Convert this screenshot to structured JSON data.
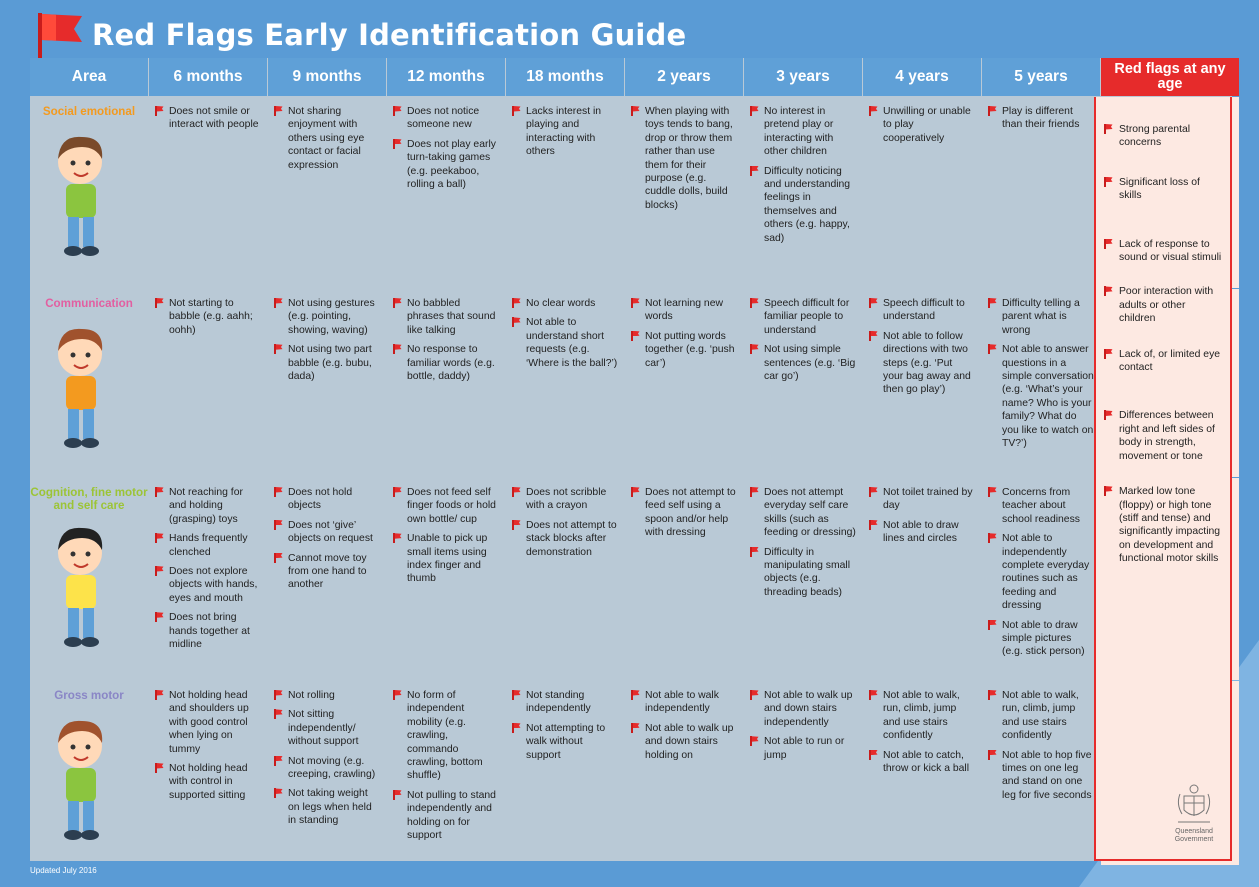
{
  "title": "Red Flags Early Identification Guide",
  "footer": "Updated July 2016",
  "colors": {
    "background": "#5a9bd5",
    "header": "#5fa0d7",
    "red": "#e62b2b",
    "social": "#f39a1f",
    "communication": "#e25fa1",
    "cognition": "#9cc436",
    "gross_motor": "#8a86c6"
  },
  "columns": [
    "Area",
    "6 months",
    "9 months",
    "12 months",
    "18 months",
    "2 years",
    "3 years",
    "4 years",
    "5 years"
  ],
  "red_header": "Red flags at any age",
  "rows": [
    {
      "area": "Social emotional",
      "cells": [
        [
          "Does not smile or interact with people"
        ],
        [
          "Not sharing enjoyment with others using eye contact or facial expression"
        ],
        [
          "Does not notice someone new",
          "Does not play early turn-taking games (e.g. peekaboo, rolling a ball)"
        ],
        [
          "Lacks interest in playing and interacting with others"
        ],
        [
          "When playing with toys tends to bang, drop or throw them rather than use them for their purpose (e.g. cuddle dolls, build blocks)"
        ],
        [
          "No interest in pretend play or interacting with other children",
          "Difficulty noticing and understanding feelings in themselves and others (e.g. happy, sad)"
        ],
        [
          "Unwilling or unable to play cooperatively"
        ],
        [
          "Play is different than their friends"
        ]
      ]
    },
    {
      "area": "Communication",
      "cells": [
        [
          "Not starting to babble (e.g. aahh; oohh)"
        ],
        [
          "Not using gestures (e.g. pointing, showing, waving)",
          "Not using two part babble (e.g. bubu, dada)"
        ],
        [
          "No babbled phrases that sound like talking",
          "No response to familiar words (e.g. bottle, daddy)"
        ],
        [
          "No clear words",
          "Not able to understand short requests (e.g. ‘Where is the ball?’)"
        ],
        [
          "Not learning new words",
          "Not putting words together (e.g. ‘push car’)"
        ],
        [
          "Speech difficult for familiar people to understand",
          "Not using simple sentences (e.g. ‘Big car go’)"
        ],
        [
          "Speech difficult to understand",
          "Not able to follow directions with two steps (e.g. ‘Put your bag away and then go play’)"
        ],
        [
          "Difficulty telling a parent what is wrong",
          "Not able to answer questions in a simple conversation (e.g. ‘What’s your name? Who is your family? What do you like to watch on TV?’)"
        ]
      ]
    },
    {
      "area": "Cognition, fine motor and self care",
      "cells": [
        [
          "Not reaching for and holding (grasping) toys",
          "Hands frequently clenched",
          "Does not explore objects with hands, eyes and mouth",
          "Does not bring hands together at midline"
        ],
        [
          "Does not hold objects",
          "Does not ‘give’ objects on request",
          "Cannot move toy from one hand to another"
        ],
        [
          "Does not feed self finger foods or hold own bottle/ cup",
          "Unable to pick up small items using index finger and thumb"
        ],
        [
          "Does not scribble with a crayon",
          "Does not attempt to stack blocks after demonstration"
        ],
        [
          "Does not attempt to feed self using a spoon and/or help with dressing"
        ],
        [
          "Does not attempt everyday self care skills (such as feeding or dressing)",
          "Difficulty in manipulating small objects (e.g. threading beads)"
        ],
        [
          "Not toilet trained by day",
          "Not able to draw lines and circles"
        ],
        [
          "Concerns from teacher about school readiness",
          "Not able to independently complete everyday routines such as feeding and dressing",
          "Not able to draw simple pictures (e.g. stick person)"
        ]
      ]
    },
    {
      "area": "Gross motor",
      "cells": [
        [
          "Not holding head and shoulders up with good control when lying on tummy",
          "Not holding head with control in supported sitting"
        ],
        [
          "Not rolling",
          "Not sitting independently/ without support",
          "Not moving (e.g. creeping, crawling)",
          "Not taking weight on legs when held in standing"
        ],
        [
          "No form of independent mobility (e.g. crawling, commando crawling, bottom shuffle)",
          "Not pulling to stand independently and holding on for support"
        ],
        [
          "Not standing independently",
          "Not attempting to walk without support"
        ],
        [
          "Not able to walk independently",
          "Not able to walk up and down stairs holding on"
        ],
        [
          "Not able to walk up and down stairs independently",
          "Not able to run or jump"
        ],
        [
          "Not able to walk, run, climb, jump and use stairs confidently",
          "Not able to catch, throw or kick a ball"
        ],
        [
          "Not able to walk, run, climb, jump and use stairs confidently",
          "Not able to hop five times on one leg and stand on one leg for five seconds"
        ]
      ]
    }
  ],
  "red_flags_any_age": [
    "Strong parental concerns",
    "Significant loss of skills",
    "Lack of response to sound or visual stimuli",
    "Poor interaction with adults or other children",
    "Lack of, or limited eye contact",
    "Differences between right and left sides of body in strength, movement or tone",
    "Marked low tone (floppy) or high tone (stiff and tense) and significantly impacting on development and functional motor skills"
  ],
  "logo": {
    "line1": "Queensland",
    "line2": "Government"
  },
  "icons": [
    "flag-icon",
    "red-flag-bullet-icon",
    "children-illustration",
    "queensland-crest-icon"
  ]
}
